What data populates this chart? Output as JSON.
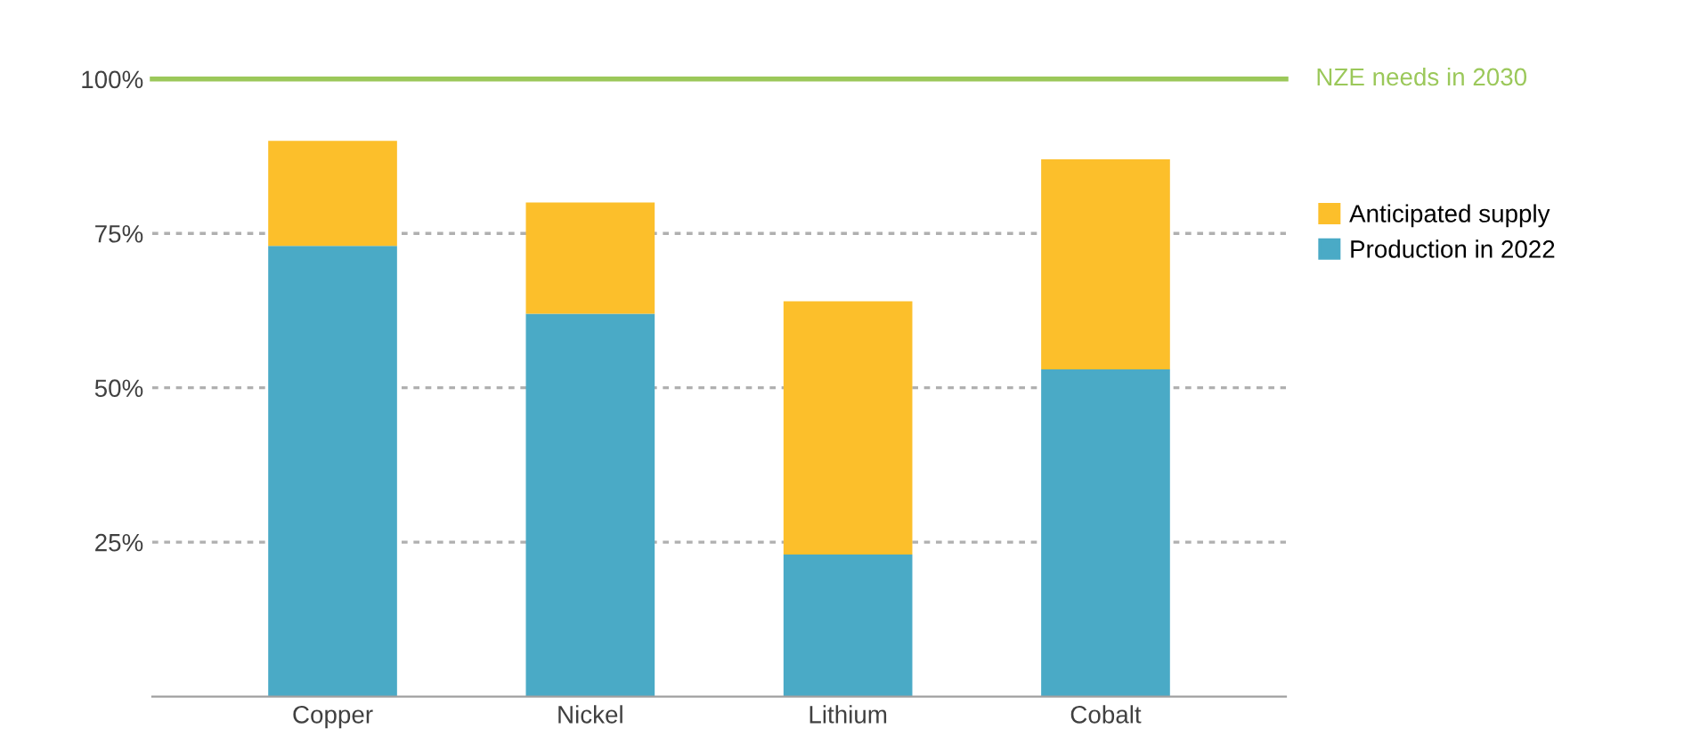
{
  "chart_data": {
    "type": "bar",
    "stacked": true,
    "categories": [
      "Copper",
      "Nickel",
      "Lithium",
      "Cobalt"
    ],
    "series": [
      {
        "name": "Production in 2022",
        "color": "#4aaac6",
        "values": [
          73,
          62,
          23,
          53
        ]
      },
      {
        "name": "Anticipated supply",
        "color": "#fcbf2b",
        "values": [
          17,
          18,
          41,
          34
        ]
      }
    ],
    "ylim": [
      0,
      100
    ],
    "yticks": [
      {
        "value": 25,
        "label": "25%"
      },
      {
        "value": 50,
        "label": "50%"
      },
      {
        "value": 75,
        "label": "75%"
      },
      {
        "value": 100,
        "label": "100%"
      }
    ],
    "grid": "y",
    "legend": "right",
    "ref_lines": [
      {
        "axis": "y",
        "value": 100,
        "label": "NZE needs in 2030",
        "color": "#9bc85a"
      }
    ]
  }
}
